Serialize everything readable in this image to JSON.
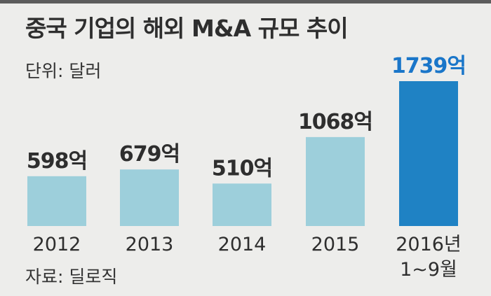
{
  "chart_data": {
    "type": "bar",
    "title": "중국 기업의 해외 M&A 규모 추이",
    "unit_label": "단위: 달러",
    "source_label": "자료: 딜로직",
    "categories": [
      "2012",
      "2013",
      "2014",
      "2015",
      "2016년"
    ],
    "category_sublabels": [
      "",
      "",
      "",
      "",
      "1~9월"
    ],
    "values": [
      598,
      679,
      510,
      1068,
      1739
    ],
    "value_labels": [
      "598억",
      "679억",
      "510억",
      "1068억",
      "1739억"
    ],
    "ylim": [
      0,
      1739
    ],
    "grid": false,
    "colors": {
      "bar": "#9dcfdb",
      "highlight_bar": "#1f82c4",
      "label": "#2e2e2e",
      "highlight_label": "#1a76c9"
    },
    "highlight_index": 4
  }
}
